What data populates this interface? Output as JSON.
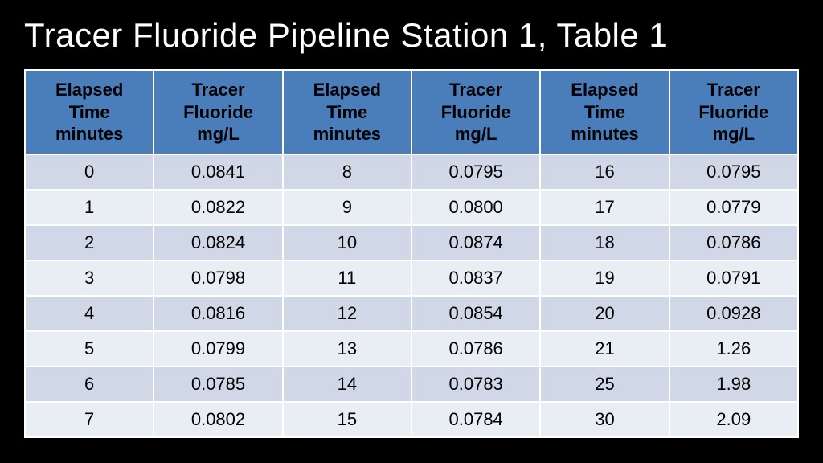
{
  "title": "Tracer Fluoride Pipeline Station 1, Table 1",
  "table": {
    "header_bg": "#4a7ebb",
    "row_even_bg": "#d0d8e8",
    "row_odd_bg": "#e9edf4",
    "text_color": "#000000",
    "headers": [
      "Elapsed Time minutes",
      "Tracer Fluoride mg/L",
      "Elapsed Time minutes",
      "Tracer Fluoride mg/L",
      "Elapsed Time minutes",
      "Tracer Fluoride mg/L"
    ],
    "header_lines": [
      [
        "Elapsed",
        "Time",
        "minutes"
      ],
      [
        "Tracer",
        "Fluoride",
        "mg/L"
      ],
      [
        "Elapsed",
        "Time",
        "minutes"
      ],
      [
        "Tracer",
        "Fluoride",
        "mg/L"
      ],
      [
        "Elapsed",
        "Time",
        "minutes"
      ],
      [
        "Tracer",
        "Fluoride",
        "mg/L"
      ]
    ],
    "rows": [
      [
        "0",
        "0.0841",
        "8",
        "0.0795",
        "16",
        "0.0795"
      ],
      [
        "1",
        "0.0822",
        "9",
        "0.0800",
        "17",
        "0.0779"
      ],
      [
        "2",
        "0.0824",
        "10",
        "0.0874",
        "18",
        "0.0786"
      ],
      [
        "3",
        "0.0798",
        "11",
        "0.0837",
        "19",
        "0.0791"
      ],
      [
        "4",
        "0.0816",
        "12",
        "0.0854",
        "20",
        "0.0928"
      ],
      [
        "5",
        "0.0799",
        "13",
        "0.0786",
        "21",
        "1.26"
      ],
      [
        "6",
        "0.0785",
        "14",
        "0.0783",
        "25",
        "1.98"
      ],
      [
        "7",
        "0.0802",
        "15",
        "0.0784",
        "30",
        "2.09"
      ]
    ]
  }
}
